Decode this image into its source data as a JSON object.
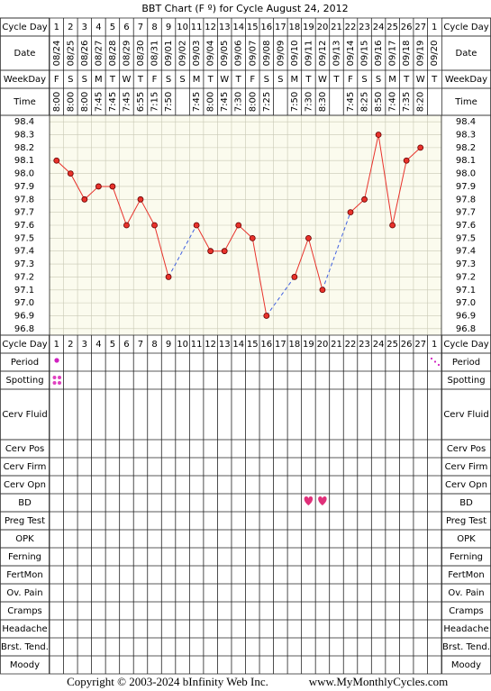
{
  "title": "BBT Chart (F º) for Cycle August 24, 2012",
  "labels": {
    "cycle_day": "Cycle Day",
    "date": "Date",
    "weekday": "WeekDay",
    "time": "Time"
  },
  "chart_data": {
    "type": "line",
    "categories": [
      1,
      2,
      3,
      4,
      5,
      6,
      7,
      8,
      9,
      10,
      11,
      12,
      13,
      14,
      15,
      16,
      17,
      18,
      19,
      20,
      21,
      22,
      23,
      24,
      25,
      26,
      27,
      1
    ],
    "dates": [
      "08/24",
      "08/25",
      "08/26",
      "08/27",
      "08/28",
      "08/29",
      "08/30",
      "08/31",
      "09/01",
      "09/02",
      "09/03",
      "09/04",
      "09/05",
      "09/06",
      "09/07",
      "09/08",
      "09/09",
      "09/10",
      "09/11",
      "09/12",
      "09/13",
      "09/14",
      "09/15",
      "09/16",
      "09/17",
      "09/18",
      "09/19",
      "09/20"
    ],
    "weekdays": [
      "F",
      "S",
      "S",
      "M",
      "T",
      "W",
      "T",
      "F",
      "S",
      "S",
      "M",
      "T",
      "W",
      "T",
      "F",
      "S",
      "S",
      "M",
      "T",
      "W",
      "T",
      "F",
      "S",
      "S",
      "M",
      "T",
      "W",
      "T"
    ],
    "times": [
      "8:00",
      "8:00",
      "8:00",
      "7:45",
      "7:45",
      "7:45",
      "6:55",
      "7:15",
      "7:50",
      null,
      "7:45",
      "8:00",
      "7:45",
      "7:30",
      "8:00",
      "7:25",
      null,
      "7:50",
      "7:30",
      "8:30",
      null,
      "7:45",
      "8:25",
      "8:50",
      "7:40",
      "7:35",
      "8:20",
      null
    ],
    "values": [
      98.1,
      98.0,
      97.8,
      97.9,
      97.9,
      97.6,
      97.8,
      97.6,
      97.2,
      null,
      97.6,
      97.4,
      97.4,
      97.6,
      97.5,
      96.9,
      null,
      97.2,
      97.5,
      97.1,
      null,
      97.7,
      97.8,
      98.3,
      97.6,
      98.1,
      98.2,
      null
    ],
    "color": "#e8322b",
    "ylim": [
      96.75,
      98.45
    ],
    "yticks": [
      98.4,
      98.3,
      98.2,
      98.1,
      {
        "value": 98.0,
        "label": "98.0"
      },
      97.9,
      97.8,
      97.7,
      97.6,
      97.5,
      97.4,
      97.3,
      97.2,
      97.1,
      {
        "value": 97.0,
        "label": "97.0"
      },
      96.9,
      96.8
    ],
    "grid": true
  },
  "tracking_rows": [
    "Period",
    "Spotting",
    "Cerv Fluid",
    "Cerv Pos",
    "Cerv Firm",
    "Cerv Opn",
    "BD",
    "Preg Test",
    "OPK",
    "Ferning",
    "FertMon",
    "Ov. Pain",
    "Cramps",
    "Headache",
    "Brst. Tend.",
    "Moody"
  ],
  "footer": {
    "copyright": "Copyright © 2003-2024 bInfinity Web Inc.",
    "site": "www.MyMonthlyCycles.com"
  }
}
